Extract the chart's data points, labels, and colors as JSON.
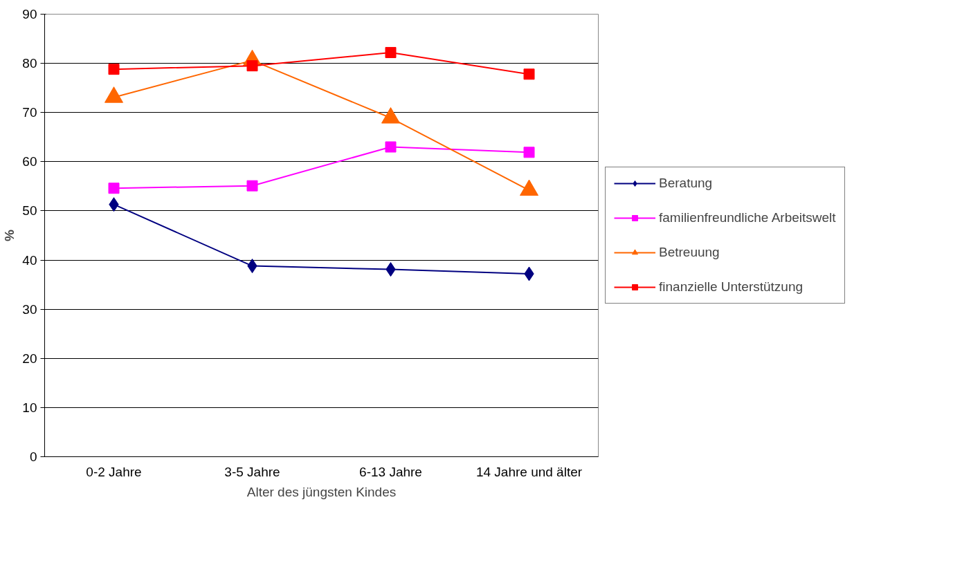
{
  "chart_data": {
    "type": "line",
    "xlabel": "Alter des jüngsten Kindes",
    "ylabel": "%",
    "categories": [
      "0-2 Jahre",
      "3-5 Jahre",
      "6-13 Jahre",
      "14 Jahre und älter"
    ],
    "series": [
      {
        "name": "Beratung",
        "color": "#000080",
        "marker": "diamond",
        "values": [
          51.3,
          38.8,
          38.1,
          37.2
        ]
      },
      {
        "name": "familienfreundliche Arbeitswelt",
        "color": "#ff00ff",
        "marker": "square",
        "values": [
          54.6,
          55.1,
          63.0,
          61.9
        ]
      },
      {
        "name": "Betreuung",
        "color": "#ff6600",
        "marker": "triangle",
        "values": [
          73.1,
          80.6,
          68.9,
          54.2
        ]
      },
      {
        "name": "finanzielle Unterstützung",
        "color": "#ff0000",
        "marker": "square",
        "values": [
          78.8,
          79.5,
          82.2,
          77.8
        ]
      }
    ],
    "ylim": [
      0,
      90
    ],
    "yticks": [
      0,
      10,
      20,
      30,
      40,
      50,
      60,
      70,
      80,
      90
    ],
    "grid": "y",
    "legend": "right",
    "line_style": "solid"
  }
}
